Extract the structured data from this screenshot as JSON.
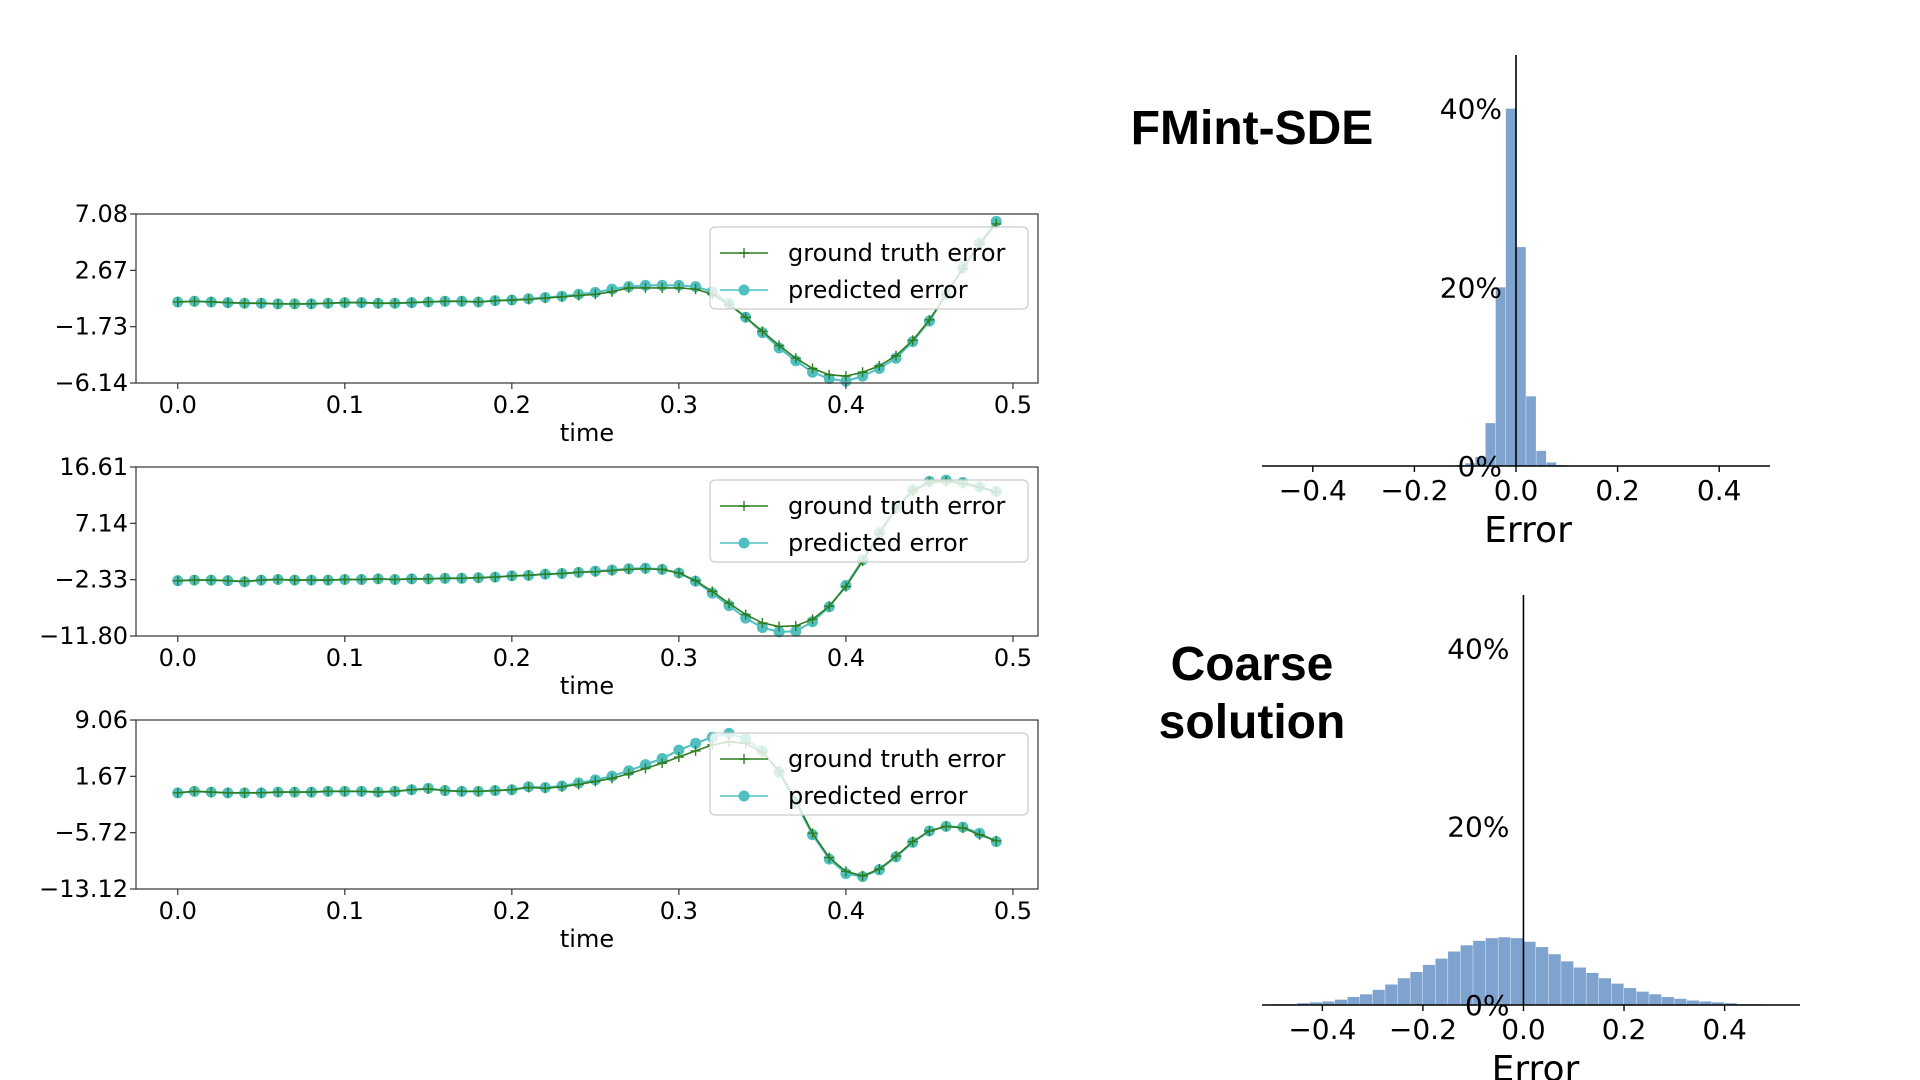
{
  "headings": {
    "fmint": "FMint-SDE",
    "coarse_line1": "Coarse",
    "coarse_line2": "solution"
  },
  "colors": {
    "ground_truth": "#2e7d1f",
    "predicted": "#4fbfbf",
    "histogram": "#7fa3cf",
    "axis": "#333333"
  },
  "chart_data": [
    {
      "type": "line",
      "xlabel": "time",
      "x_ticks": [
        "0.0",
        "0.1",
        "0.2",
        "0.3",
        "0.4",
        "0.5"
      ],
      "y_ticks": [
        "7.08",
        "2.67",
        "−1.73",
        "−6.14"
      ],
      "ylim": [
        -6.14,
        7.08
      ],
      "xlim": [
        -0.025,
        0.515
      ],
      "legend": {
        "placement": "top-right",
        "entries": [
          "ground truth error",
          "predicted error"
        ]
      },
      "x": [
        0.0,
        0.01,
        0.02,
        0.03,
        0.04,
        0.05,
        0.06,
        0.07,
        0.08,
        0.09,
        0.1,
        0.11,
        0.12,
        0.13,
        0.14,
        0.15,
        0.16,
        0.17,
        0.18,
        0.19,
        0.2,
        0.21,
        0.22,
        0.23,
        0.24,
        0.25,
        0.26,
        0.27,
        0.28,
        0.29,
        0.3,
        0.31,
        0.32,
        0.33,
        0.34,
        0.35,
        0.36,
        0.37,
        0.38,
        0.39,
        0.4,
        0.41,
        0.42,
        0.43,
        0.44,
        0.45,
        0.46,
        0.47,
        0.48,
        0.49
      ],
      "series": [
        {
          "name": "ground truth error",
          "values": [
            0.2,
            0.25,
            0.2,
            0.15,
            0.1,
            0.1,
            0.05,
            0.05,
            0.05,
            0.1,
            0.15,
            0.15,
            0.1,
            0.1,
            0.15,
            0.2,
            0.25,
            0.25,
            0.2,
            0.3,
            0.35,
            0.4,
            0.5,
            0.6,
            0.7,
            0.8,
            1.0,
            1.3,
            1.3,
            1.3,
            1.3,
            1.2,
            0.8,
            0.0,
            -1.0,
            -2.1,
            -3.2,
            -4.2,
            -5.0,
            -5.5,
            -5.6,
            -5.3,
            -4.8,
            -4.0,
            -2.8,
            -1.2,
            0.8,
            2.8,
            4.7,
            6.3
          ]
        },
        {
          "name": "predicted error",
          "values": [
            0.2,
            0.25,
            0.2,
            0.15,
            0.1,
            0.1,
            0.05,
            0.05,
            0.05,
            0.1,
            0.15,
            0.15,
            0.1,
            0.1,
            0.15,
            0.2,
            0.25,
            0.25,
            0.2,
            0.3,
            0.35,
            0.45,
            0.55,
            0.65,
            0.8,
            0.95,
            1.2,
            1.4,
            1.5,
            1.5,
            1.5,
            1.4,
            1.0,
            0.1,
            -1.0,
            -2.2,
            -3.4,
            -4.4,
            -5.3,
            -5.8,
            -6.0,
            -5.6,
            -5.0,
            -4.2,
            -2.9,
            -1.3,
            0.8,
            2.9,
            4.8,
            6.5
          ]
        }
      ]
    },
    {
      "type": "line",
      "xlabel": "time",
      "x_ticks": [
        "0.0",
        "0.1",
        "0.2",
        "0.3",
        "0.4",
        "0.5"
      ],
      "y_ticks": [
        "16.61",
        "7.14",
        "−2.33",
        "−11.80"
      ],
      "ylim": [
        -11.8,
        16.61
      ],
      "xlim": [
        -0.025,
        0.515
      ],
      "legend": {
        "placement": "top-right",
        "entries": [
          "ground truth error",
          "predicted error"
        ]
      },
      "x": [
        0.0,
        0.01,
        0.02,
        0.03,
        0.04,
        0.05,
        0.06,
        0.07,
        0.08,
        0.09,
        0.1,
        0.11,
        0.12,
        0.13,
        0.14,
        0.15,
        0.16,
        0.17,
        0.18,
        0.19,
        0.2,
        0.21,
        0.22,
        0.23,
        0.24,
        0.25,
        0.26,
        0.27,
        0.28,
        0.29,
        0.3,
        0.31,
        0.32,
        0.33,
        0.34,
        0.35,
        0.36,
        0.37,
        0.38,
        0.39,
        0.4,
        0.41,
        0.42,
        0.43,
        0.44,
        0.45,
        0.46,
        0.47,
        0.48,
        0.49
      ],
      "series": [
        {
          "name": "ground truth error",
          "values": [
            -2.5,
            -2.4,
            -2.4,
            -2.5,
            -2.6,
            -2.4,
            -2.3,
            -2.4,
            -2.4,
            -2.4,
            -2.3,
            -2.3,
            -2.2,
            -2.3,
            -2.2,
            -2.2,
            -2.1,
            -2.1,
            -2.0,
            -1.9,
            -1.7,
            -1.6,
            -1.4,
            -1.3,
            -1.1,
            -1.0,
            -0.8,
            -0.6,
            -0.5,
            -0.6,
            -1.2,
            -2.5,
            -4.3,
            -6.3,
            -8.2,
            -9.6,
            -10.2,
            -10.1,
            -9.0,
            -6.8,
            -3.5,
            0.8,
            5.4,
            9.6,
            12.6,
            14.0,
            14.2,
            13.8,
            13.2,
            12.4
          ]
        },
        {
          "name": "predicted error",
          "values": [
            -2.5,
            -2.4,
            -2.4,
            -2.5,
            -2.7,
            -2.4,
            -2.3,
            -2.4,
            -2.4,
            -2.4,
            -2.3,
            -2.3,
            -2.2,
            -2.3,
            -2.2,
            -2.2,
            -2.1,
            -2.1,
            -2.0,
            -1.9,
            -1.7,
            -1.6,
            -1.4,
            -1.3,
            -1.1,
            -0.9,
            -0.7,
            -0.5,
            -0.4,
            -0.6,
            -1.2,
            -2.6,
            -4.6,
            -6.7,
            -8.8,
            -10.4,
            -11.1,
            -11.0,
            -9.4,
            -6.9,
            -3.3,
            1.0,
            5.6,
            9.8,
            12.8,
            14.2,
            14.4,
            14.0,
            13.3,
            12.5
          ]
        }
      ]
    },
    {
      "type": "line",
      "xlabel": "time",
      "x_ticks": [
        "0.0",
        "0.1",
        "0.2",
        "0.3",
        "0.4",
        "0.5"
      ],
      "y_ticks": [
        "9.06",
        "1.67",
        "−5.72",
        "−13.12"
      ],
      "ylim": [
        -13.12,
        9.06
      ],
      "xlim": [
        -0.025,
        0.515
      ],
      "legend": {
        "placement": "top-right",
        "entries": [
          "ground truth error",
          "predicted error"
        ]
      },
      "x": [
        0.0,
        0.01,
        0.02,
        0.03,
        0.04,
        0.05,
        0.06,
        0.07,
        0.08,
        0.09,
        0.1,
        0.11,
        0.12,
        0.13,
        0.14,
        0.15,
        0.16,
        0.17,
        0.18,
        0.19,
        0.2,
        0.21,
        0.22,
        0.23,
        0.24,
        0.25,
        0.26,
        0.27,
        0.28,
        0.29,
        0.3,
        0.31,
        0.32,
        0.33,
        0.34,
        0.35,
        0.36,
        0.37,
        0.38,
        0.39,
        0.4,
        0.41,
        0.42,
        0.43,
        0.44,
        0.45,
        0.46,
        0.47,
        0.48,
        0.49
      ],
      "series": [
        {
          "name": "ground truth error",
          "values": [
            -0.5,
            -0.3,
            -0.4,
            -0.5,
            -0.5,
            -0.5,
            -0.4,
            -0.4,
            -0.4,
            -0.3,
            -0.3,
            -0.3,
            -0.4,
            -0.3,
            -0.1,
            0.0,
            -0.2,
            -0.3,
            -0.3,
            -0.2,
            -0.1,
            0.2,
            0.1,
            0.3,
            0.6,
            1.0,
            1.4,
            2.0,
            2.7,
            3.4,
            4.2,
            5.0,
            5.8,
            6.2,
            6.0,
            4.8,
            2.4,
            -1.5,
            -5.8,
            -9.0,
            -10.8,
            -11.4,
            -10.5,
            -8.8,
            -6.9,
            -5.5,
            -4.9,
            -5.1,
            -6.0,
            -6.8
          ]
        },
        {
          "name": "predicted error",
          "values": [
            -0.5,
            -0.3,
            -0.4,
            -0.5,
            -0.5,
            -0.5,
            -0.4,
            -0.4,
            -0.4,
            -0.3,
            -0.3,
            -0.3,
            -0.4,
            -0.3,
            -0.1,
            0.1,
            -0.2,
            -0.3,
            -0.3,
            -0.2,
            -0.1,
            0.3,
            0.2,
            0.4,
            0.8,
            1.2,
            1.7,
            2.4,
            3.2,
            4.0,
            5.1,
            6.0,
            6.8,
            7.3,
            6.6,
            5.0,
            2.2,
            -1.8,
            -6.0,
            -9.2,
            -11.1,
            -11.5,
            -10.6,
            -8.9,
            -7.0,
            -5.5,
            -4.9,
            -5.0,
            -5.8,
            -6.9
          ]
        }
      ]
    },
    {
      "type": "bar",
      "title": "FMint-SDE",
      "xlabel": "Error",
      "x_ticks": [
        "−0.4",
        "−0.2",
        "0.0",
        "0.2",
        "0.4"
      ],
      "y_ticks": [
        "40%",
        "20%",
        "0%"
      ],
      "xlim": [
        -0.5,
        0.5
      ],
      "ylim": [
        0,
        0.46
      ],
      "bin_edges": [
        -0.12,
        -0.1,
        -0.08,
        -0.06,
        -0.04,
        -0.02,
        0.0,
        0.02,
        0.04,
        0.06,
        0.08,
        0.1,
        0.12,
        0.14
      ],
      "values": [
        0.001,
        0.003,
        0.01,
        0.048,
        0.2,
        0.4,
        0.245,
        0.078,
        0.017,
        0.004,
        0.001,
        0.0005,
        0.0002
      ]
    },
    {
      "type": "bar",
      "title": "Coarse solution",
      "xlabel": "Error",
      "x_ticks": [
        "−0.4",
        "−0.2",
        "0.0",
        "0.2",
        "0.4"
      ],
      "y_ticks": [
        "40%",
        "20%",
        "0%"
      ],
      "xlim": [
        -0.52,
        0.55
      ],
      "ylim": [
        0,
        0.46
      ],
      "bin_edges": [
        -0.5,
        -0.475,
        -0.45,
        -0.425,
        -0.4,
        -0.375,
        -0.35,
        -0.325,
        -0.3,
        -0.275,
        -0.25,
        -0.225,
        -0.2,
        -0.175,
        -0.15,
        -0.125,
        -0.1,
        -0.075,
        -0.05,
        -0.025,
        0.0,
        0.025,
        0.05,
        0.075,
        0.1,
        0.125,
        0.15,
        0.175,
        0.2,
        0.225,
        0.25,
        0.275,
        0.3,
        0.325,
        0.35,
        0.375,
        0.4,
        0.425,
        0.45,
        0.475,
        0.5
      ],
      "values": [
        0.001,
        0.001,
        0.002,
        0.003,
        0.004,
        0.006,
        0.009,
        0.012,
        0.017,
        0.023,
        0.03,
        0.037,
        0.045,
        0.052,
        0.06,
        0.067,
        0.072,
        0.075,
        0.076,
        0.075,
        0.071,
        0.065,
        0.057,
        0.049,
        0.042,
        0.036,
        0.03,
        0.024,
        0.019,
        0.015,
        0.012,
        0.009,
        0.007,
        0.005,
        0.004,
        0.003,
        0.002,
        0.001,
        0.001,
        0.0005
      ]
    }
  ]
}
